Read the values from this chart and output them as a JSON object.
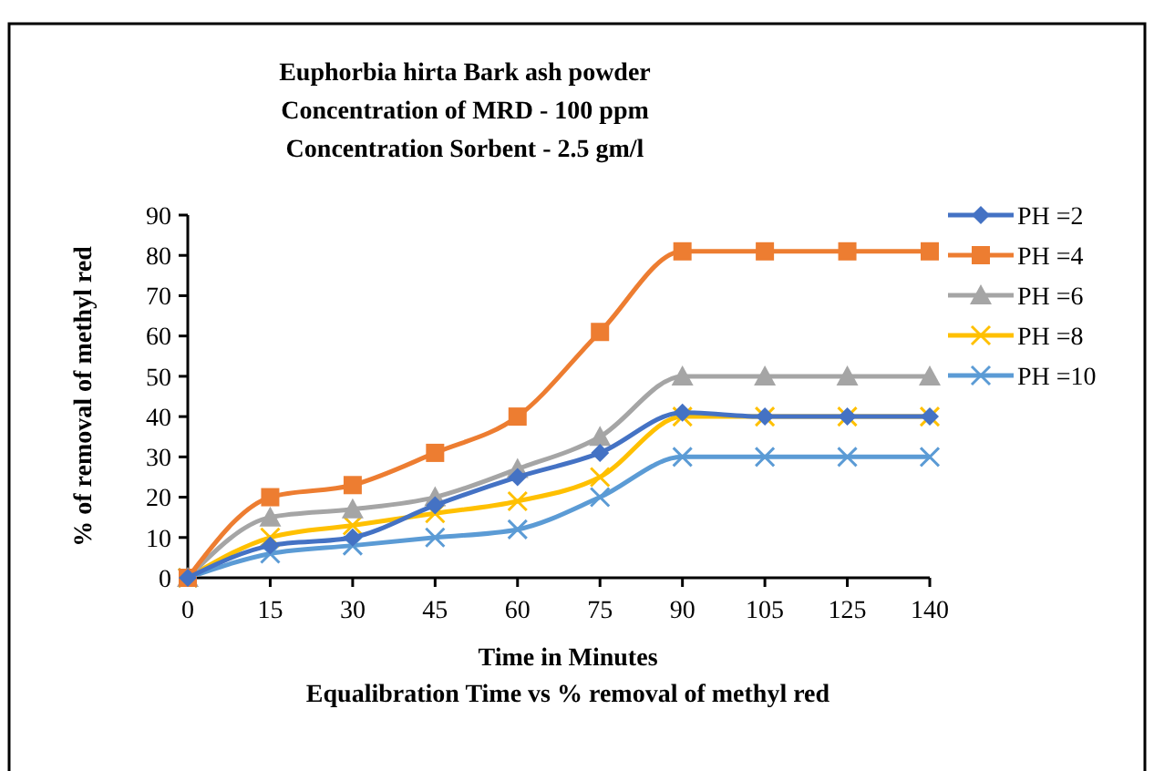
{
  "chart_data": {
    "type": "line",
    "title": "Euphorbia  hirta Bark ash powder\nConcentration  of MRD  - 100 ppm\nConcentration  Sorbent  - 2.5 gm/l",
    "xlabel": "Time in Minutes",
    "ylabel": "% of removal  of methyl red",
    "annotations": [
      "Equalibration  Time vs % removal of methyl red"
    ],
    "categories": [
      "0",
      "15",
      "30",
      "45",
      "60",
      "75",
      "90",
      "105",
      "125",
      "140"
    ],
    "series": [
      {
        "name": "PH =2",
        "color": "#4472c4",
        "marker": "diamond",
        "values": [
          0,
          8,
          10,
          18,
          25,
          31,
          41,
          40,
          40,
          40
        ]
      },
      {
        "name": "PH =4",
        "color": "#ed7d31",
        "marker": "square",
        "values": [
          0,
          20,
          23,
          31,
          40,
          61,
          81,
          81,
          81,
          81
        ]
      },
      {
        "name": "PH =6",
        "color": "#a5a5a5",
        "marker": "triangle",
        "values": [
          0,
          15,
          17,
          20,
          27,
          35,
          50,
          50,
          50,
          50
        ]
      },
      {
        "name": "PH =8",
        "color": "#ffc000",
        "marker": "cross",
        "values": [
          0,
          10,
          13,
          16,
          19,
          25,
          40,
          40,
          40,
          40
        ]
      },
      {
        "name": "PH =10",
        "color": "#5b9bd5",
        "marker": "cross",
        "values": [
          0,
          6,
          8,
          10,
          12,
          20,
          30,
          30,
          30,
          30
        ]
      }
    ],
    "ylim": [
      0,
      90
    ],
    "yticks": [
      0,
      10,
      20,
      30,
      40,
      50,
      60,
      70,
      80,
      90
    ],
    "grid": false,
    "legend": "right"
  }
}
